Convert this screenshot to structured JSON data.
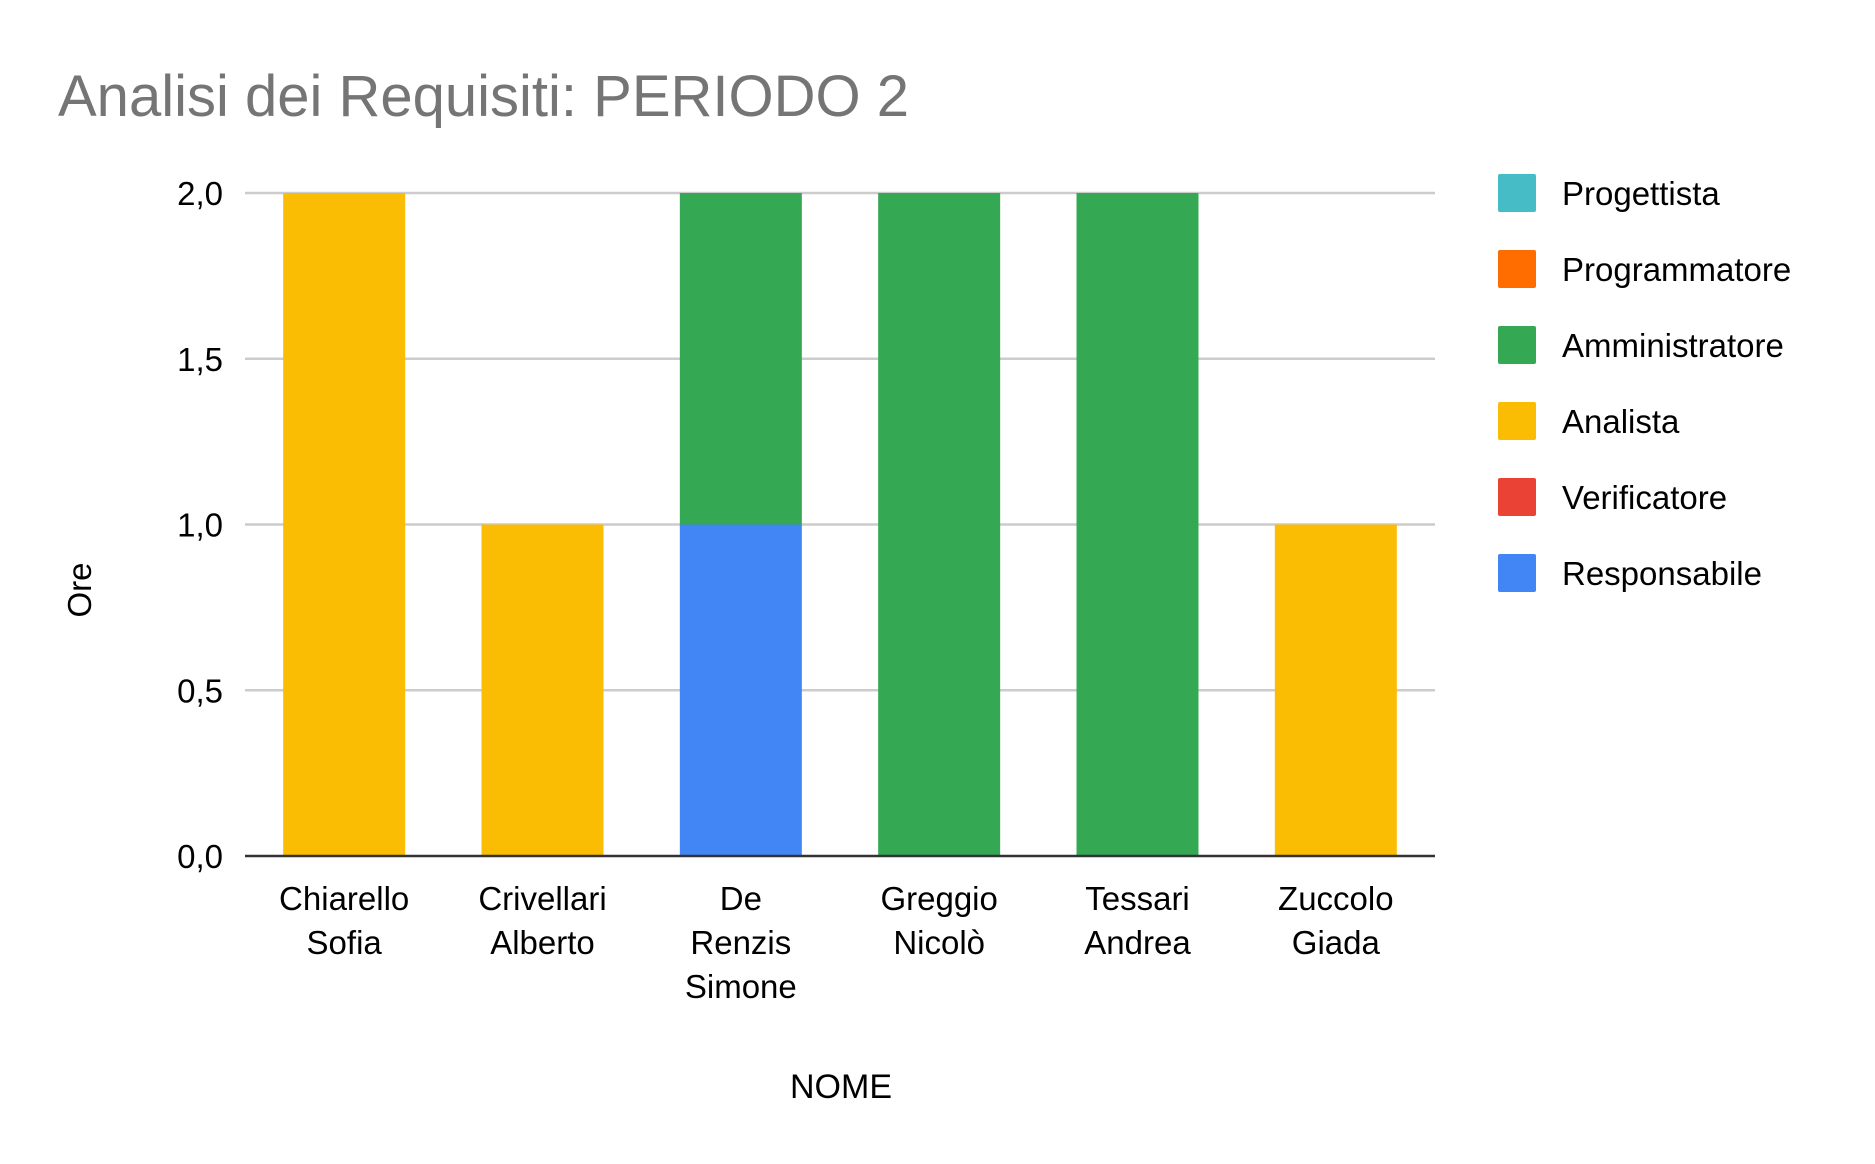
{
  "chart_data": {
    "type": "bar",
    "stacked": true,
    "title": "Analisi dei Requisiti: PERIODO 2",
    "xlabel": "NOME",
    "ylabel": "Ore",
    "ylim": [
      0,
      2
    ],
    "y_ticks": [
      0,
      0.5,
      1,
      1.5,
      2
    ],
    "y_tick_labels": [
      "0,0",
      "0,5",
      "1,0",
      "1,5",
      "2,0"
    ],
    "grid": true,
    "legend_position": "right",
    "categories": [
      "Chiarello Sofia",
      "Crivellari Alberto",
      "De Renzis Simone",
      "Greggio Nicolò",
      "Tessari Andrea",
      "Zuccolo Giada"
    ],
    "category_label_lines": [
      [
        "Chiarello",
        "Sofia"
      ],
      [
        "Crivellari",
        "Alberto"
      ],
      [
        "De",
        "Renzis",
        "Simone"
      ],
      [
        "Greggio",
        "Nicolò"
      ],
      [
        "Tessari",
        "Andrea"
      ],
      [
        "Zuccolo",
        "Giada"
      ]
    ],
    "series": [
      {
        "name": "Responsabile",
        "color": "#4285f4",
        "values": [
          0,
          0,
          1,
          0,
          0,
          0
        ]
      },
      {
        "name": "Verificatore",
        "color": "#ea4335",
        "values": [
          0,
          0,
          0,
          0,
          0,
          0
        ]
      },
      {
        "name": "Analista",
        "color": "#fbbc04",
        "values": [
          2,
          1,
          0,
          0,
          0,
          1
        ]
      },
      {
        "name": "Amministratore",
        "color": "#34a853",
        "values": [
          0,
          0,
          1,
          2,
          2,
          0
        ]
      },
      {
        "name": "Programmatore",
        "color": "#ff6d01",
        "values": [
          0,
          0,
          0,
          0,
          0,
          0
        ]
      },
      {
        "name": "Progettista",
        "color": "#46bdc6",
        "values": [
          0,
          0,
          0,
          0,
          0,
          0
        ]
      }
    ],
    "legend_order": [
      "Progettista",
      "Programmatore",
      "Amministratore",
      "Analista",
      "Verificatore",
      "Responsabile"
    ]
  }
}
